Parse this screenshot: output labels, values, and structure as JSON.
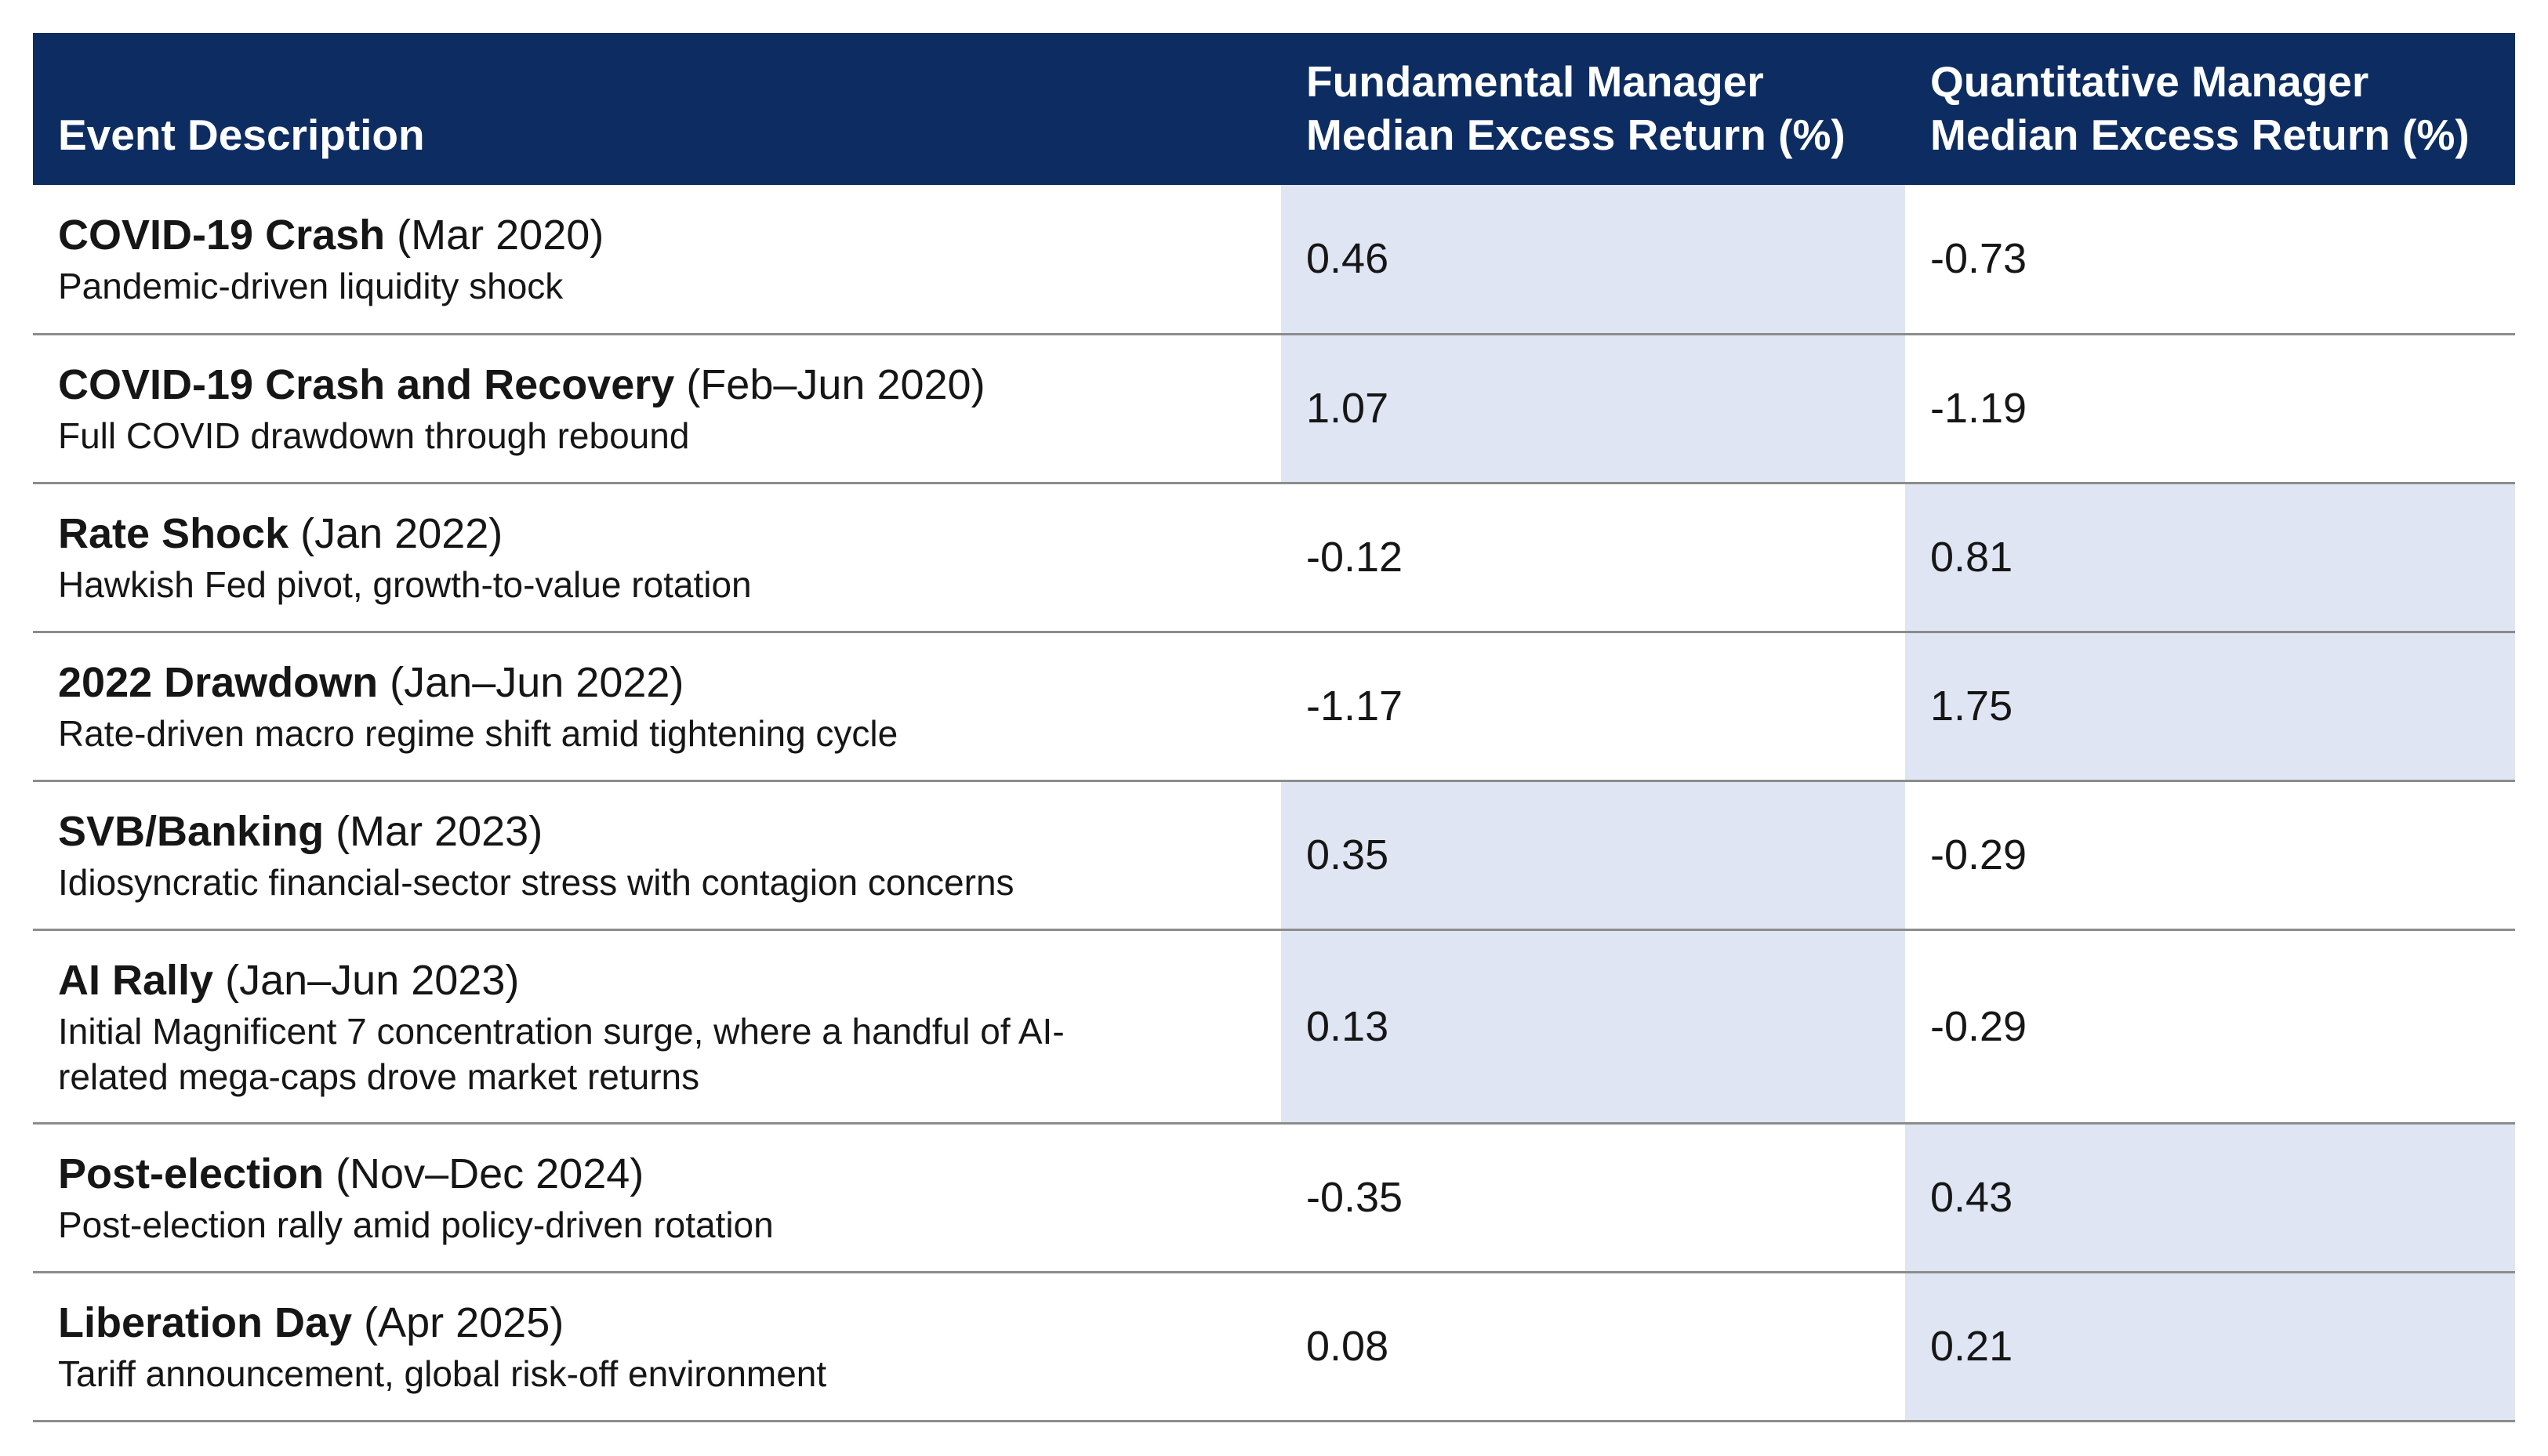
{
  "table": {
    "headers": {
      "event": "Event Description",
      "fundamental": [
        "Fundamental Manager",
        "Median Excess Return (%)"
      ],
      "quantitative": [
        "Quantitative Manager",
        "Median Excess Return (%)"
      ]
    },
    "rows": [
      {
        "title": "COVID-19 Crash",
        "period": "(Mar 2020)",
        "description": "Pandemic-driven liquidity shock",
        "fundamental": "0.46",
        "quantitative": "-0.73"
      },
      {
        "title": "COVID-19 Crash and Recovery",
        "period": "(Feb–Jun 2020)",
        "description": "Full COVID drawdown through rebound",
        "fundamental": "1.07",
        "quantitative": "-1.19"
      },
      {
        "title": "Rate Shock",
        "period": "(Jan 2022)",
        "description": "Hawkish Fed pivot, growth-to-value rotation",
        "fundamental": "-0.12",
        "quantitative": "0.81"
      },
      {
        "title": "2022 Drawdown",
        "period": "(Jan–Jun 2022)",
        "description": "Rate-driven macro regime shift amid tightening cycle",
        "fundamental": "-1.17",
        "quantitative": "1.75"
      },
      {
        "title": "SVB/Banking",
        "period": "(Mar 2023)",
        "description": "Idiosyncratic financial-sector stress with contagion concerns",
        "fundamental": "0.35",
        "quantitative": "-0.29"
      },
      {
        "title": "AI Rally",
        "period": "(Jan–Jun 2023)",
        "description": "Initial Magnificent 7 concentration surge, where a handful of AI-related mega-caps drove market returns",
        "fundamental": "0.13",
        "quantitative": "-0.29"
      },
      {
        "title": "Post-election",
        "period": "(Nov–Dec 2024)",
        "description": "Post-election rally amid policy-driven rotation",
        "fundamental": "-0.35",
        "quantitative": "0.43"
      },
      {
        "title": "Liberation Day",
        "period": "(Apr 2025)",
        "description": "Tariff announcement, global risk-off environment",
        "fundamental": "0.08",
        "quantitative": "0.21"
      }
    ]
  },
  "colors": {
    "header_background": "#0d2d62",
    "header_text": "#ffffff",
    "highlight_cell": "#dfe5f2",
    "row_divider": "#8c8c8c"
  }
}
